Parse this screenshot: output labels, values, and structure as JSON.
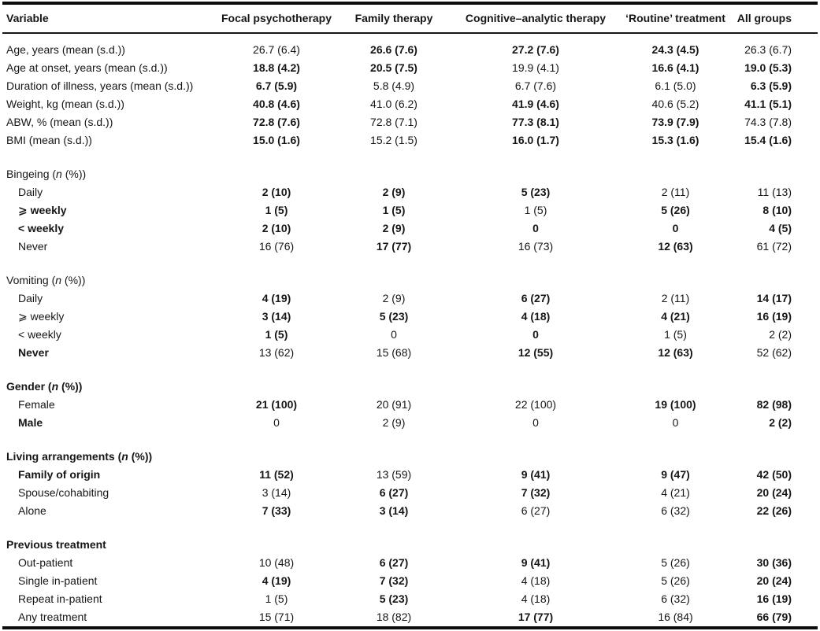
{
  "colors": {
    "text": "#161616",
    "rule": "#0d0d0d",
    "background": "#ffffff"
  },
  "table": {
    "columns": [
      {
        "label": "Variable"
      },
      {
        "label": "Focal psychotherapy"
      },
      {
        "label": "Family therapy"
      },
      {
        "label": "Cognitive–analytic therapy"
      },
      {
        "label": "‘Routine’ treatment"
      },
      {
        "label": "All groups"
      }
    ],
    "sections": [
      {
        "title": "",
        "title_bold": 0,
        "indent_rows": 0,
        "rows": [
          {
            "label": "Age, years (mean (s.d.))",
            "values": [
              "26.7 (6.4)",
              "26.6 (7.6)",
              "27.2 (7.6)",
              "24.3 (4.5)",
              "26.3 (6.7)"
            ],
            "bold": [
              0,
              0,
              1,
              1,
              1,
              0
            ]
          },
          {
            "label": "Age at onset, years (mean (s.d.))",
            "values": [
              "18.8 (4.2)",
              "20.5 (7.5)",
              "19.9 (4.1)",
              "16.6 (4.1)",
              "19.0 (5.3)"
            ],
            "bold": [
              0,
              1,
              1,
              0,
              1,
              1
            ]
          },
          {
            "label": "Duration of illness, years (mean (s.d.))",
            "values": [
              "6.7 (5.9)",
              "5.8 (4.9)",
              "6.7 (7.6)",
              "6.1 (5.0)",
              "6.3 (5.9)"
            ],
            "bold": [
              0,
              1,
              0,
              0,
              0,
              1
            ]
          },
          {
            "label": "Weight, kg (mean (s.d.))",
            "values": [
              "40.8 (4.6)",
              "41.0 (6.2)",
              "41.9 (4.6)",
              "40.6 (5.2)",
              "41.1 (5.1)"
            ],
            "bold": [
              0,
              1,
              0,
              1,
              0,
              1
            ]
          },
          {
            "label": "ABW, % (mean (s.d.))",
            "values": [
              "72.8 (7.6)",
              "72.8 (7.1)",
              "77.3 (8.1)",
              "73.9 (7.9)",
              "74.3 (7.8)"
            ],
            "bold": [
              0,
              1,
              0,
              1,
              1,
              0
            ]
          },
          {
            "label": "BMI (mean (s.d.))",
            "values": [
              "15.0 (1.6)",
              "15.2 (1.5)",
              "16.0 (1.7)",
              "15.3 (1.6)",
              "15.4 (1.6)"
            ],
            "bold": [
              0,
              1,
              0,
              1,
              1,
              1
            ]
          }
        ]
      },
      {
        "title": "Bingeing (n (%))",
        "title_bold": 0,
        "indent_rows": 1,
        "rows": [
          {
            "label": "Daily",
            "values": [
              "2 (10)",
              "2 (9)",
              "5 (23)",
              "2 (11)",
              "11 (13)"
            ],
            "bold": [
              0,
              1,
              1,
              1,
              0,
              0
            ]
          },
          {
            "label": "⩾ weekly",
            "values": [
              "1 (5)",
              "1 (5)",
              "1 (5)",
              "5 (26)",
              "8 (10)"
            ],
            "bold": [
              1,
              1,
              1,
              0,
              1,
              1
            ]
          },
          {
            "label": "< weekly",
            "values": [
              "2 (10)",
              "2 (9)",
              "0",
              "0",
              "4 (5)"
            ],
            "bold": [
              1,
              1,
              1,
              1,
              1,
              1
            ]
          },
          {
            "label": "Never",
            "values": [
              "16 (76)",
              "17 (77)",
              "16 (73)",
              "12 (63)",
              "61 (72)"
            ],
            "bold": [
              0,
              0,
              1,
              0,
              1,
              0
            ]
          }
        ]
      },
      {
        "title": "Vomiting (n (%))",
        "title_bold": 0,
        "indent_rows": 1,
        "rows": [
          {
            "label": "Daily",
            "values": [
              "4 (19)",
              "2 (9)",
              "6 (27)",
              "2 (11)",
              "14 (17)"
            ],
            "bold": [
              0,
              1,
              0,
              1,
              0,
              1
            ]
          },
          {
            "label": "⩾ weekly",
            "values": [
              "3 (14)",
              "5 (23)",
              "4 (18)",
              "4 (21)",
              "16 (19)"
            ],
            "bold": [
              0,
              1,
              1,
              1,
              1,
              1
            ]
          },
          {
            "label": "< weekly",
            "values": [
              "1 (5)",
              "0",
              "0",
              "1 (5)",
              "2 (2)"
            ],
            "bold": [
              0,
              1,
              0,
              1,
              0,
              0
            ]
          },
          {
            "label": "Never",
            "values": [
              "13 (62)",
              "15 (68)",
              "12 (55)",
              "12 (63)",
              "52 (62)"
            ],
            "bold": [
              1,
              0,
              0,
              1,
              1,
              0
            ]
          }
        ]
      },
      {
        "title": "Gender (n (%))",
        "title_bold": 1,
        "indent_rows": 1,
        "rows": [
          {
            "label": "Female",
            "values": [
              "21 (100)",
              "20 (91)",
              "22 (100)",
              "19 (100)",
              "82 (98)"
            ],
            "bold": [
              0,
              1,
              0,
              0,
              1,
              1
            ]
          },
          {
            "label": "Male",
            "values": [
              "0",
              "2 (9)",
              "0",
              "0",
              "2 (2)"
            ],
            "bold": [
              1,
              0,
              0,
              0,
              0,
              1
            ]
          }
        ]
      },
      {
        "title": "Living arrangements (n (%))",
        "title_bold": 1,
        "indent_rows": 1,
        "rows": [
          {
            "label": "Family of origin",
            "values": [
              "11 (52)",
              "13 (59)",
              "9 (41)",
              "9 (47)",
              "42 (50)"
            ],
            "bold": [
              1,
              1,
              0,
              1,
              1,
              1
            ]
          },
          {
            "label": "Spouse/cohabiting",
            "values": [
              "3 (14)",
              "6 (27)",
              "7 (32)",
              "4 (21)",
              "20 (24)"
            ],
            "bold": [
              0,
              0,
              1,
              1,
              0,
              1
            ]
          },
          {
            "label": "Alone",
            "values": [
              "7 (33)",
              "3 (14)",
              "6 (27)",
              "6 (32)",
              "22 (26)"
            ],
            "bold": [
              0,
              1,
              1,
              0,
              0,
              1
            ]
          }
        ]
      },
      {
        "title": "Previous treatment",
        "title_bold": 1,
        "indent_rows": 1,
        "rows": [
          {
            "label": "Out-patient",
            "values": [
              "10 (48)",
              "6 (27)",
              "9 (41)",
              "5 (26)",
              "30 (36)"
            ],
            "bold": [
              0,
              0,
              1,
              1,
              0,
              1
            ]
          },
          {
            "label": "Single in-patient",
            "values": [
              "4 (19)",
              "7 (32)",
              "4 (18)",
              "5 (26)",
              "20 (24)"
            ],
            "bold": [
              0,
              1,
              1,
              0,
              0,
              1
            ]
          },
          {
            "label": "Repeat in-patient",
            "values": [
              "1 (5)",
              "5 (23)",
              "4 (18)",
              "6 (32)",
              "16 (19)"
            ],
            "bold": [
              0,
              0,
              1,
              0,
              0,
              1
            ]
          },
          {
            "label": "Any treatment",
            "values": [
              "15 (71)",
              "18 (82)",
              "17 (77)",
              "16 (84)",
              "66 (79)"
            ],
            "bold": [
              0,
              0,
              0,
              1,
              0,
              1
            ]
          }
        ]
      }
    ]
  }
}
